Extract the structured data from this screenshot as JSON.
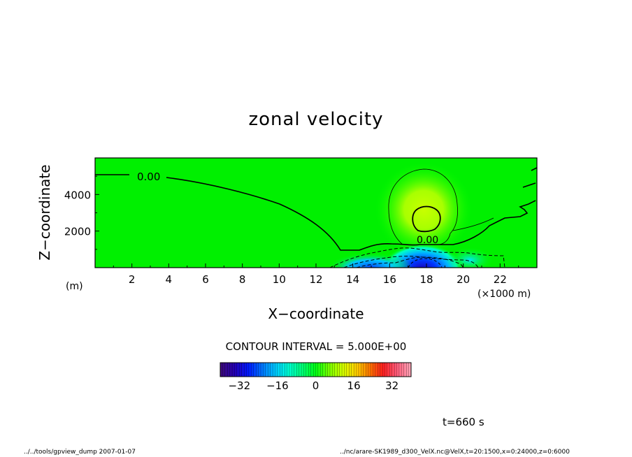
{
  "chart_data": {
    "type": "heatmap",
    "title": "zonal velocity",
    "xlabel": "X−coordinate",
    "ylabel": "Z−coordinate",
    "x_unit": "(×1000 m)",
    "y_unit": "(m)",
    "xlim": [
      0,
      24
    ],
    "ylim": [
      0,
      6000
    ],
    "x_ticks": [
      2,
      4,
      6,
      8,
      10,
      12,
      14,
      16,
      18,
      20,
      22
    ],
    "y_ticks": [
      2000,
      4000
    ],
    "contour_labels": [
      "0.00",
      "0.00"
    ],
    "contour_interval": "CONTOUR INTERVAL = 5.000E+00",
    "colorbar": {
      "range": [
        -40,
        40
      ],
      "ticks": [
        -32,
        -16,
        0,
        16,
        32
      ],
      "tick_labels": [
        "−32",
        "−16",
        "0",
        "16",
        "32"
      ],
      "colors": [
        "#3b0a7a",
        "#2400b4",
        "#0019ff",
        "#0073ff",
        "#00c8ff",
        "#00ffd2",
        "#00ff78",
        "#00ff14",
        "#78ff00",
        "#d2ff00",
        "#ffd200",
        "#ff7800",
        "#ff1e1e",
        "#ff5a78",
        "#ffa0b4"
      ]
    },
    "field": {
      "background_value": 0,
      "jet_core": {
        "x": 18.0,
        "z": 2800,
        "value": 10
      },
      "low_core": {
        "x": 18.0,
        "z": 150,
        "value": -30
      }
    }
  },
  "time_label": "t=660 s",
  "footer": {
    "left": "../../tools/gpview_dump  2007-01-07",
    "right": "../nc/arare-SK1989_d300_VelX.nc@VelX,t=20:1500,x=0:24000,z=0:6000"
  }
}
